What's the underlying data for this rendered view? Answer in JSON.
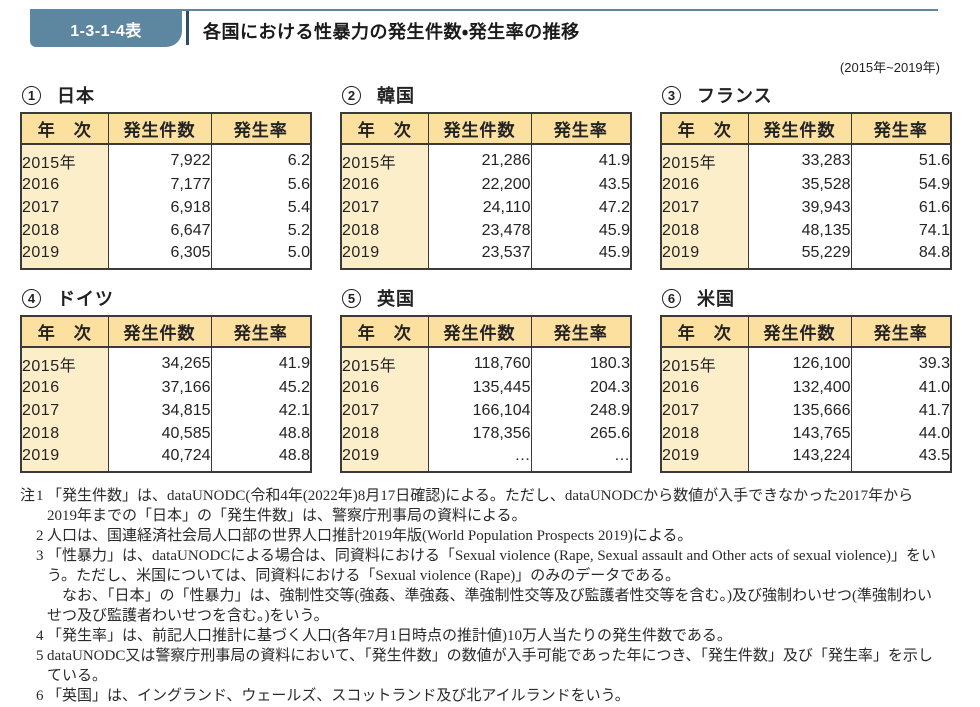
{
  "header": {
    "table_no": "1-3-1-4表",
    "title": "各国における性暴力の発生件数・発生率の推移",
    "period": "(2015年~2019年)"
  },
  "columns": [
    "年　次",
    "発生件数",
    "発生率"
  ],
  "tables": [
    {
      "num": "1",
      "country": "日本",
      "rows": [
        [
          "2015年",
          "7,922",
          "6.2"
        ],
        [
          "2016",
          "7,177",
          "5.6"
        ],
        [
          "2017",
          "6,918",
          "5.4"
        ],
        [
          "2018",
          "6,647",
          "5.2"
        ],
        [
          "2019",
          "6,305",
          "5.0"
        ]
      ]
    },
    {
      "num": "2",
      "country": "韓国",
      "rows": [
        [
          "2015年",
          "21,286",
          "41.9"
        ],
        [
          "2016",
          "22,200",
          "43.5"
        ],
        [
          "2017",
          "24,110",
          "47.2"
        ],
        [
          "2018",
          "23,478",
          "45.9"
        ],
        [
          "2019",
          "23,537",
          "45.9"
        ]
      ]
    },
    {
      "num": "3",
      "country": "フランス",
      "rows": [
        [
          "2015年",
          "33,283",
          "51.6"
        ],
        [
          "2016",
          "35,528",
          "54.9"
        ],
        [
          "2017",
          "39,943",
          "61.6"
        ],
        [
          "2018",
          "48,135",
          "74.1"
        ],
        [
          "2019",
          "55,229",
          "84.8"
        ]
      ]
    },
    {
      "num": "4",
      "country": "ドイツ",
      "rows": [
        [
          "2015年",
          "34,265",
          "41.9"
        ],
        [
          "2016",
          "37,166",
          "45.2"
        ],
        [
          "2017",
          "34,815",
          "42.1"
        ],
        [
          "2018",
          "40,585",
          "48.8"
        ],
        [
          "2019",
          "40,724",
          "48.8"
        ]
      ]
    },
    {
      "num": "5",
      "country": "英国",
      "rows": [
        [
          "2015年",
          "118,760",
          "180.3"
        ],
        [
          "2016",
          "135,445",
          "204.3"
        ],
        [
          "2017",
          "166,104",
          "248.9"
        ],
        [
          "2018",
          "178,356",
          "265.6"
        ],
        [
          "2019",
          "…",
          "…"
        ]
      ]
    },
    {
      "num": "6",
      "country": "米国",
      "rows": [
        [
          "2015年",
          "126,100",
          "39.3"
        ],
        [
          "2016",
          "132,400",
          "41.0"
        ],
        [
          "2017",
          "135,666",
          "41.7"
        ],
        [
          "2018",
          "143,765",
          "44.0"
        ],
        [
          "2019",
          "143,224",
          "43.5"
        ]
      ]
    }
  ],
  "notes": {
    "label": "注",
    "items": [
      {
        "num": "1",
        "paragraphs": [
          "「発生件数」は、dataUNODC(令和4年(2022年)8月17日確認)による。ただし、dataUNODCから数値が入手できなかった2017年から2019年までの「日本」の「発生件数」は、警察庁刑事局の資料による。"
        ]
      },
      {
        "num": "2",
        "paragraphs": [
          "人口は、国連経済社会局人口部の世界人口推計2019年版(World Population Prospects 2019)による。"
        ]
      },
      {
        "num": "3",
        "paragraphs": [
          "「性暴力」は、dataUNODCによる場合は、同資料における「Sexual violence (Rape, Sexual assault and Other acts of sexual violence)」をいう。ただし、米国については、同資料における「Sexual violence (Rape)」のみのデータである。",
          "なお、「日本」の「性暴力」は、強制性交等(強姦、準強姦、準強制性交等及び監護者性交等を含む。)及び強制わいせつ(準強制わいせつ及び監護者わいせつを含む。)をいう。"
        ]
      },
      {
        "num": "4",
        "paragraphs": [
          "「発生率」は、前記人口推計に基づく人口(各年7月1日時点の推計値)10万人当たりの発生件数である。"
        ]
      },
      {
        "num": "5",
        "paragraphs": [
          "dataUNODC又は警察庁刑事局の資料において、「発生件数」の数値が入手可能であった年につき、「発生件数」及び「発生率」を示している。"
        ]
      },
      {
        "num": "6",
        "paragraphs": [
          "「英国」は、イングランド、ウェールズ、スコットランド及び北アイルランドをいう。"
        ]
      }
    ]
  },
  "colors": {
    "blue": "#5d87a1",
    "navy": "#2e4d68",
    "th-bg": "#fbe09f",
    "year-bg": "#fdeeca",
    "border": "#3a3a3a",
    "ink": "#222222"
  }
}
